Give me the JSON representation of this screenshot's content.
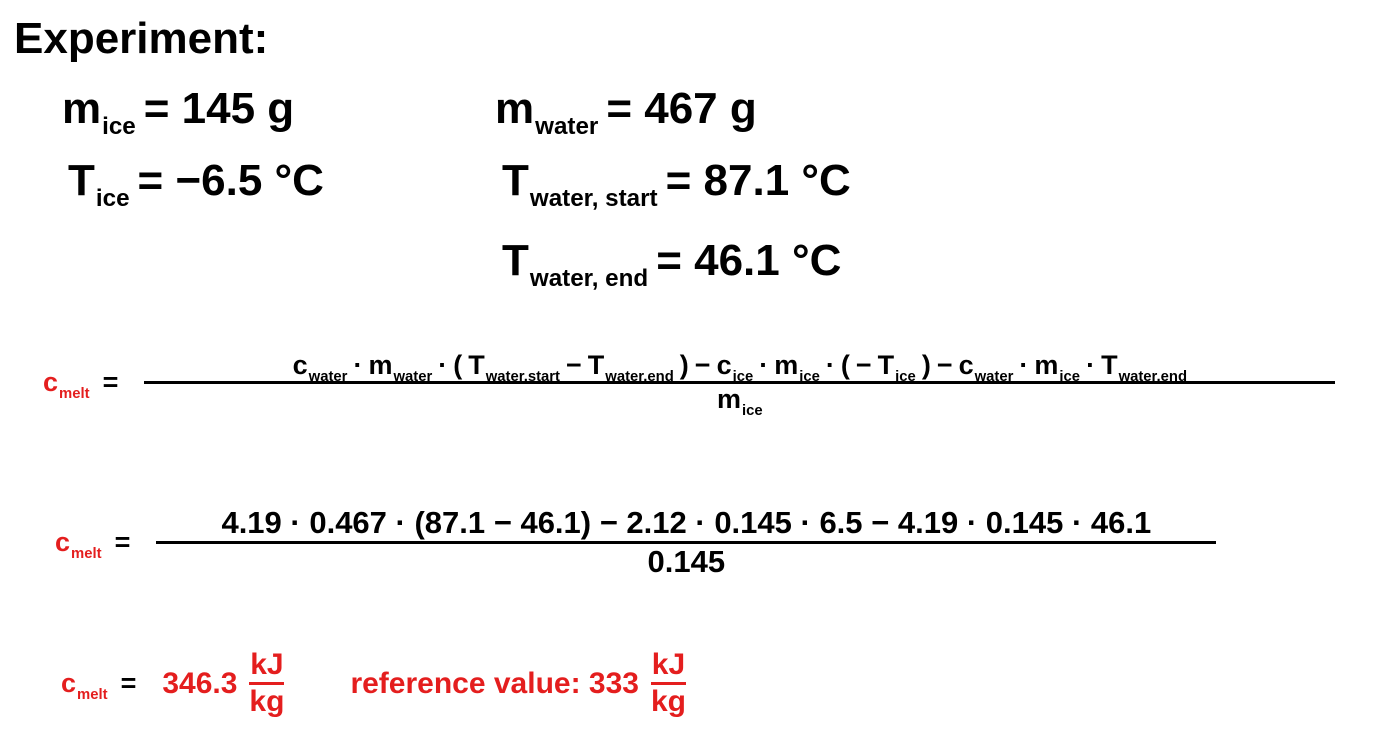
{
  "title": "Experiment:",
  "givens": [
    {
      "symbol": "m",
      "sub": "ice",
      "value": "= 145 g"
    },
    {
      "symbol": "m",
      "sub": "water",
      "value": "= 467 g"
    },
    {
      "symbol": "T",
      "sub": "ice",
      "value": "= −6.5 °C"
    },
    {
      "symbol": "T",
      "sub": "water, start",
      "value": "= 87.1 °C"
    },
    {
      "symbol": "T",
      "sub": "water, end",
      "value": "= 46.1 °C"
    }
  ],
  "formula": {
    "lhs": {
      "t": "c",
      "sub": "melt"
    },
    "eq": "=",
    "numerator": [
      {
        "t": "c",
        "sub": "water"
      },
      {
        "t": "·"
      },
      {
        "t": "m",
        "sub": "water"
      },
      {
        "t": "·"
      },
      {
        "t": "("
      },
      {
        "t": "T",
        "sub": "water,start"
      },
      {
        "t": "−"
      },
      {
        "t": "T",
        "sub": "water,end"
      },
      {
        "t": ")"
      },
      {
        "t": "−"
      },
      {
        "t": "c",
        "sub": "ice"
      },
      {
        "t": "·"
      },
      {
        "t": "m",
        "sub": "ice"
      },
      {
        "t": "·"
      },
      {
        "t": "("
      },
      {
        "t": "−"
      },
      {
        "t": "T",
        "sub": "ice"
      },
      {
        "t": ")"
      },
      {
        "t": "−"
      },
      {
        "t": "c",
        "sub": "water"
      },
      {
        "t": "·"
      },
      {
        "t": "m",
        "sub": "ice"
      },
      {
        "t": "·"
      },
      {
        "t": "T",
        "sub": "water,end"
      }
    ],
    "denominator": [
      {
        "t": "m",
        "sub": "ice"
      }
    ]
  },
  "substitution": {
    "lhs": {
      "t": "c",
      "sub": "melt"
    },
    "eq": "=",
    "numerator": "4.19 · 0.467 · (87.1 − 46.1) − 2.12 · 0.145 · 6.5 − 4.19 · 0.145 · 46.1",
    "denominator": "0.145"
  },
  "result": {
    "lhs": {
      "t": "c",
      "sub": "melt"
    },
    "eq": "=",
    "value": "346.3",
    "unit": {
      "numerator": "kJ",
      "denominator": "kg"
    },
    "reference_label": "reference value: 333",
    "reference_unit": {
      "numerator": "kJ",
      "denominator": "kg"
    }
  }
}
